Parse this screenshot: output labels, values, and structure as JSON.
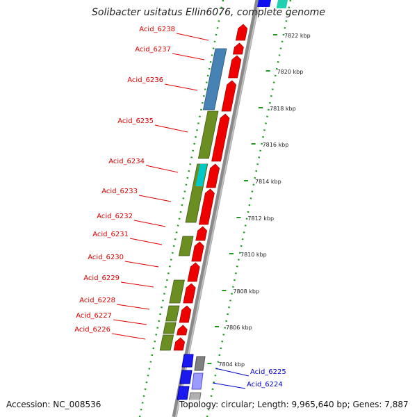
{
  "title": "Solibacter usitatus Ellin6076, complete genome",
  "footer": {
    "accession": "Accession: NC_008536",
    "summary": "Topology: circular; Length: 9,965,640 bp; Genes: 7,887"
  },
  "scale_ticks": [
    "7804 kbp",
    "7806 kbp",
    "7808 kbp",
    "7810 kbp",
    "7812 kbp",
    "7814 kbp",
    "7816 kbp",
    "7818 kbp",
    "7820 kbp",
    "7822 kbp"
  ],
  "colors": {
    "forward_cds": "#ee0000",
    "reverse_cds": "#6b8e23",
    "rna_feature": "#4682b4",
    "highlight": "#00c8c8",
    "blue_feature": "#1010ee",
    "tick_dots": "#228b22",
    "backbone": "#888888"
  },
  "genes": [
    {
      "label": "Acid_6238",
      "color": "#dd0000"
    },
    {
      "label": "Acid_6237",
      "color": "#dd0000"
    },
    {
      "label": "Acid_6236",
      "color": "#dd0000"
    },
    {
      "label": "Acid_6235",
      "color": "#dd0000"
    },
    {
      "label": "Acid_6234",
      "color": "#dd0000"
    },
    {
      "label": "Acid_6233",
      "color": "#dd0000"
    },
    {
      "label": "Acid_6232",
      "color": "#dd0000"
    },
    {
      "label": "Acid_6231",
      "color": "#dd0000"
    },
    {
      "label": "Acid_6230",
      "color": "#dd0000"
    },
    {
      "label": "Acid_6229",
      "color": "#dd0000"
    },
    {
      "label": "Acid_6228",
      "color": "#dd0000"
    },
    {
      "label": "Acid_6227",
      "color": "#dd0000"
    },
    {
      "label": "Acid_6226",
      "color": "#dd0000"
    },
    {
      "label": "Acid_6225",
      "color": "#0000cc"
    },
    {
      "label": "Acid_6224",
      "color": "#0000cc"
    }
  ]
}
